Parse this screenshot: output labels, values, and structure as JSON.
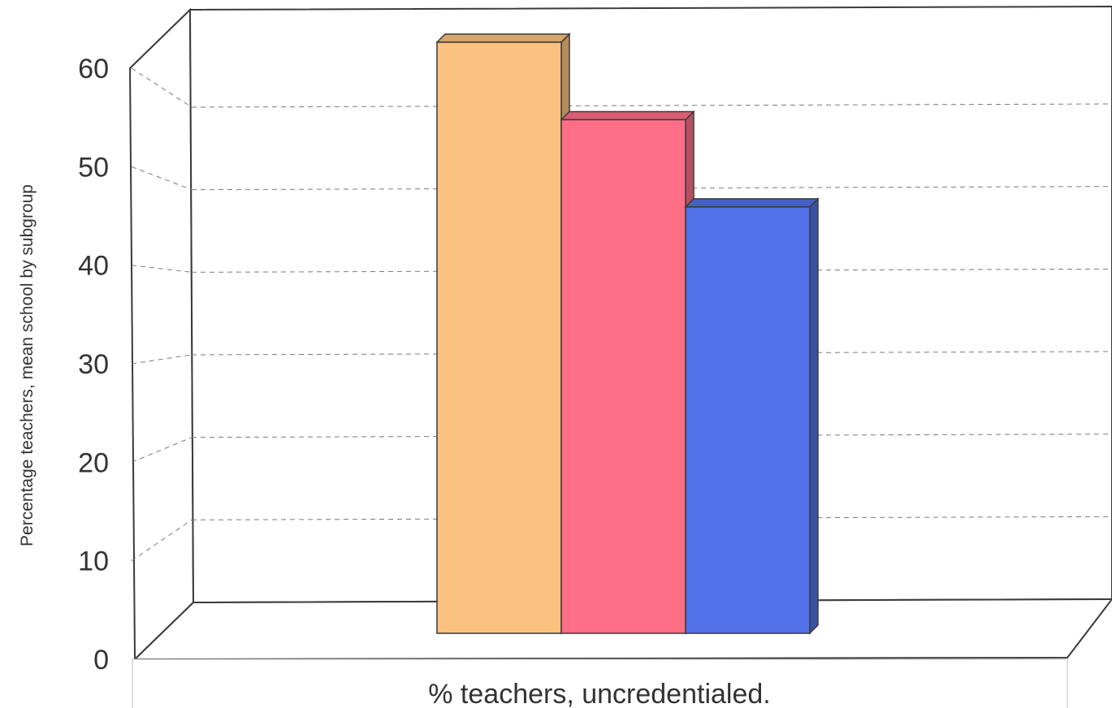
{
  "chart_data": {
    "type": "bar",
    "style": "3d",
    "categories": [
      "% teachers, uncredentialed."
    ],
    "series": [
      {
        "values": [
          61
        ],
        "color": "#FBC27F"
      },
      {
        "values": [
          53
        ],
        "color": "#FF6E87"
      },
      {
        "values": [
          44
        ],
        "color": "#5071E8"
      }
    ],
    "title": "",
    "xlabel": "",
    "ylabel": "Percentage teachers, mean school by subgroup",
    "ylim": [
      0,
      60
    ],
    "yticks": [
      0,
      10,
      20,
      30,
      40,
      50,
      60
    ],
    "grid": true
  }
}
